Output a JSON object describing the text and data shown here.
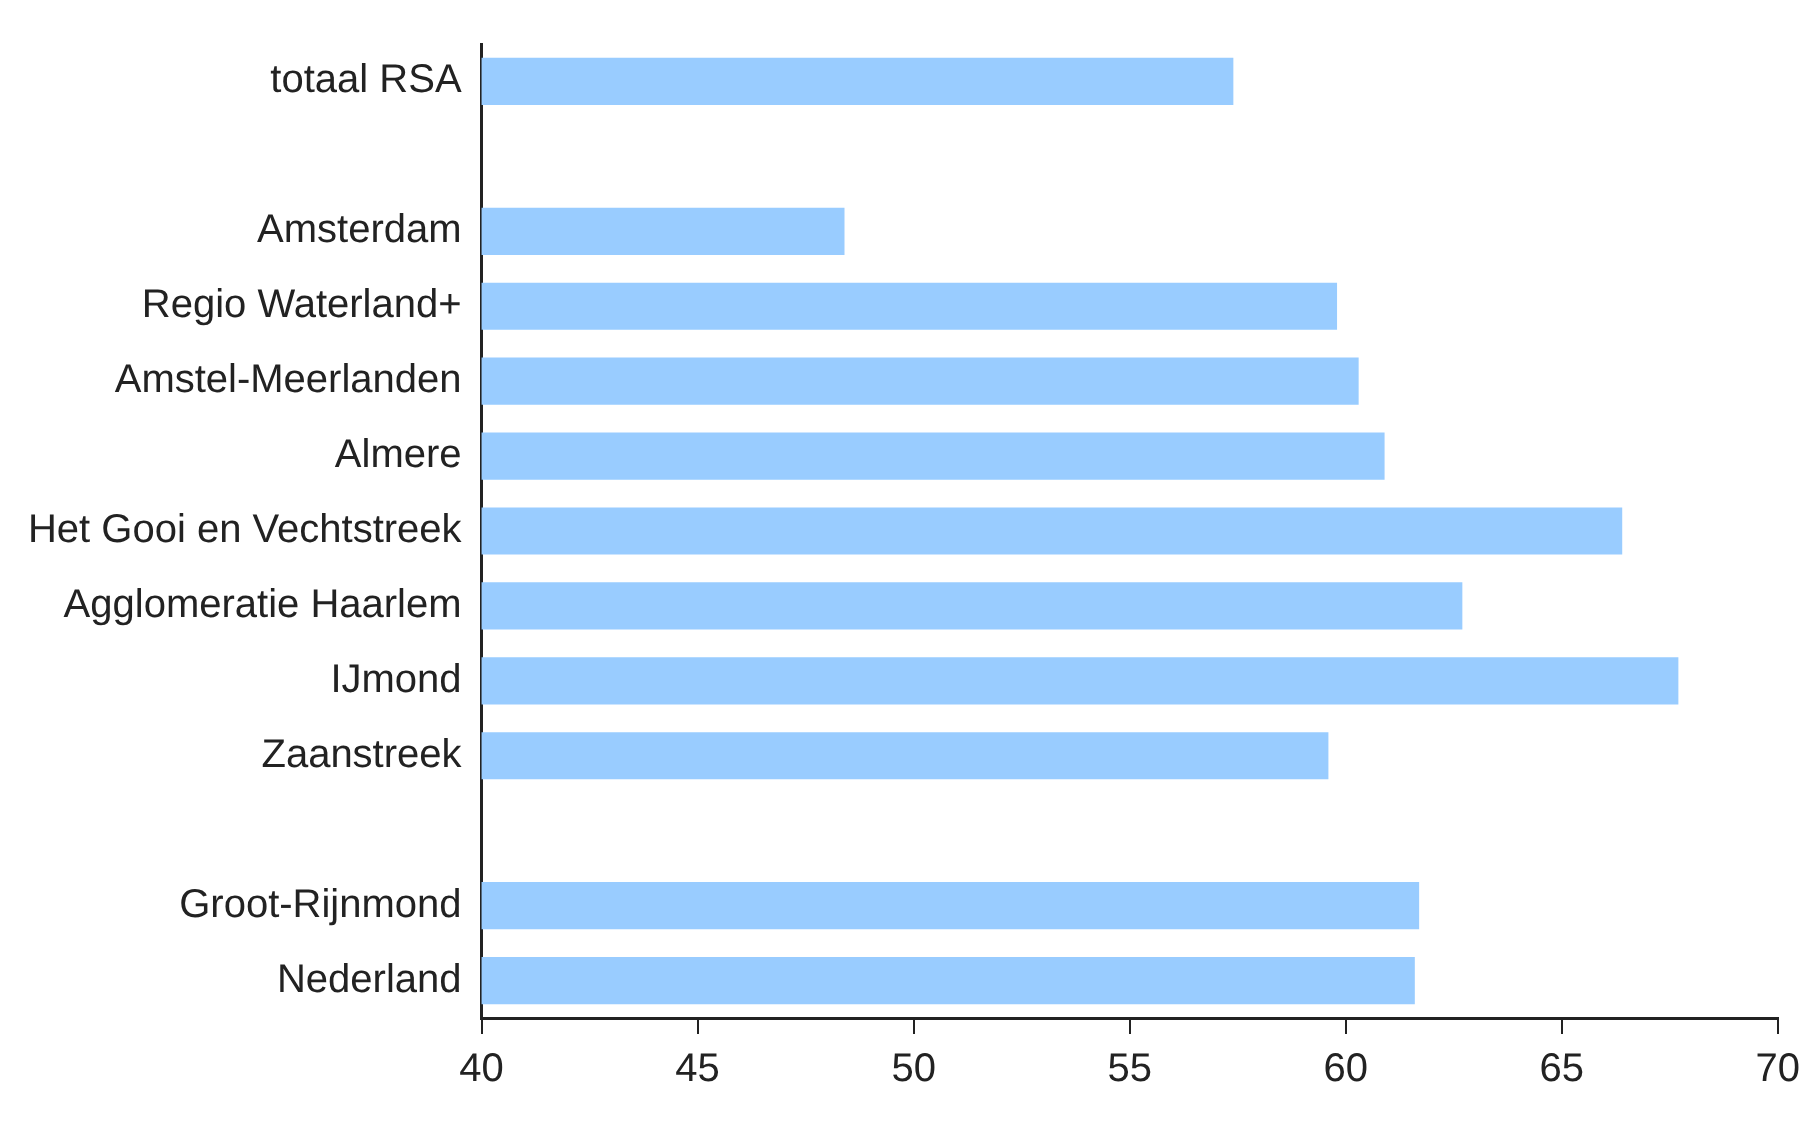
{
  "chart_data": {
    "type": "bar",
    "orientation": "horizontal",
    "categories": [
      "totaal RSA",
      null,
      "Amsterdam",
      "Regio Waterland+",
      "Amstel-Meerlanden",
      "Almere",
      "Het Gooi en Vechtstreek",
      "Agglomeratie Haarlem",
      "IJmond",
      "Zaanstreek",
      null,
      "Groot-Rijnmond",
      "Nederland"
    ],
    "values": [
      57.4,
      null,
      48.4,
      59.8,
      60.3,
      60.9,
      66.4,
      62.7,
      67.7,
      59.6,
      null,
      61.7,
      61.6
    ],
    "color": "#99ccff",
    "xlim": [
      40,
      70
    ],
    "xticks": [
      40,
      45,
      50,
      55,
      60,
      65,
      70
    ],
    "grid": false,
    "legend": false
  }
}
